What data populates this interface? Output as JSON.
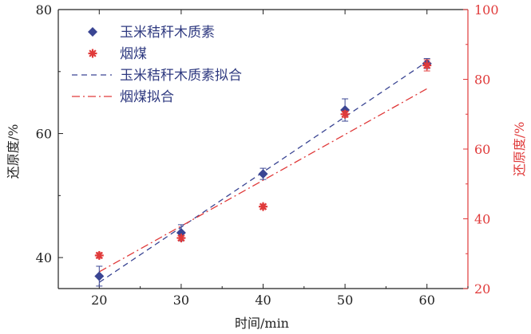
{
  "chart_data": {
    "type": "scatter",
    "title": "",
    "xlabel": "时间/min",
    "ylabel_left": "还原度/%",
    "ylabel_right": "还原度/%",
    "x_ticks": [
      20,
      30,
      40,
      50,
      60
    ],
    "xlim": [
      15,
      65
    ],
    "ylim_left": [
      35,
      80
    ],
    "ylim_right": [
      20,
      100
    ],
    "yticks_left": [
      40,
      60,
      80
    ],
    "yticks_right": [
      20,
      40,
      60,
      80,
      100
    ],
    "colors": {
      "series_a": "#3a4593",
      "series_b": "#e03a3a",
      "axis": "#222222",
      "right_axis": "#e03a3a"
    },
    "series": [
      {
        "name": "玉米秸秆木质素",
        "marker": "diamond",
        "axis": "left",
        "color": "#3a4593",
        "x": [
          20,
          30,
          40,
          50,
          60
        ],
        "y": [
          37.0,
          44.0,
          53.5,
          63.8,
          71.3
        ],
        "err": [
          1.6,
          1.3,
          0.9,
          1.8,
          0.8
        ]
      },
      {
        "name": "烟煤",
        "marker": "star",
        "axis": "right",
        "color": "#e03a3a",
        "x": [
          20,
          30,
          40,
          50,
          60
        ],
        "y": [
          29.5,
          34.5,
          43.5,
          70.0,
          84.0
        ],
        "err": [
          0.8,
          0.6,
          0.7,
          0.9,
          1.6
        ]
      },
      {
        "name": "玉米秸秆木质素拟合",
        "line": "dashed",
        "axis": "left",
        "color": "#3a4593",
        "x": [
          20,
          60
        ],
        "y": [
          36.0,
          71.6
        ]
      },
      {
        "name": "烟煤拟合",
        "line": "dashdot",
        "axis": "right",
        "color": "#e03a3a",
        "x": [
          20,
          60
        ],
        "y": [
          24.8,
          77.3
        ]
      }
    ],
    "legend_position": "top-left"
  }
}
